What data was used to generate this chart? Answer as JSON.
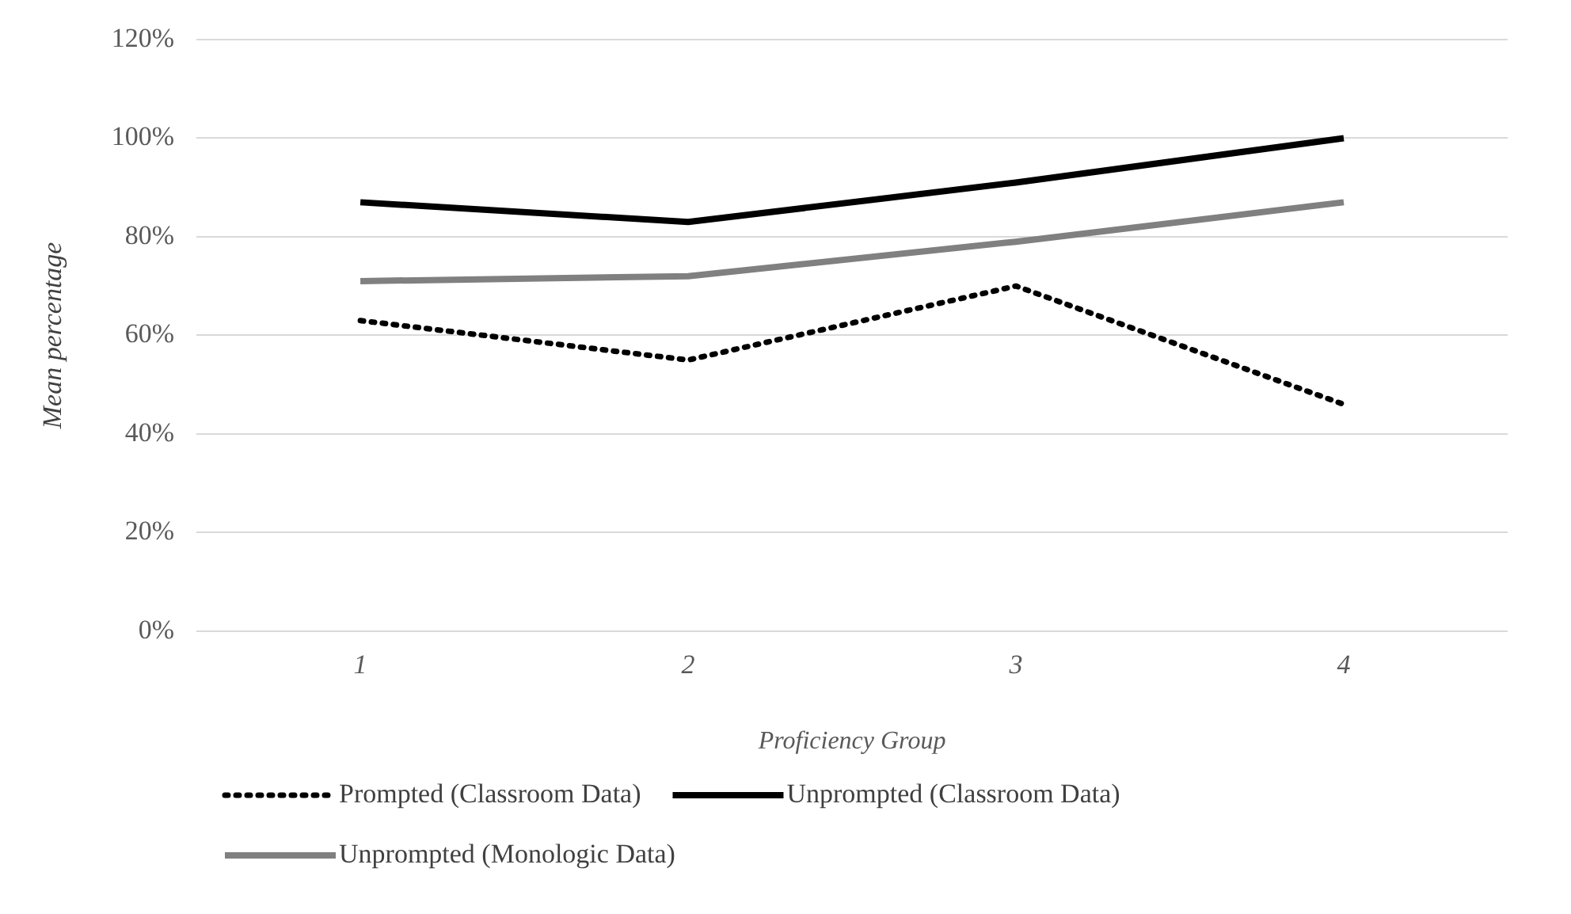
{
  "chart_data": {
    "type": "line",
    "xlabel": "Proficiency Group",
    "ylabel": "Mean percentage",
    "categories": [
      "1",
      "2",
      "3",
      "4"
    ],
    "series": [
      {
        "name": "Prompted (Classroom Data)",
        "color": "#000000",
        "line_style": "dotted",
        "values": [
          63,
          55,
          70,
          46
        ]
      },
      {
        "name": "Unprompted (Classroom Data)",
        "color": "#000000",
        "line_style": "solid",
        "values": [
          87,
          83,
          91,
          100
        ]
      },
      {
        "name": "Unprompted (Monologic Data)",
        "color": "#808080",
        "line_style": "solid",
        "values": [
          71,
          72,
          79,
          87
        ]
      }
    ],
    "ylim": [
      0,
      120
    ],
    "yticks": [
      {
        "value": 0,
        "label": "0%"
      },
      {
        "value": 20,
        "label": "20%"
      },
      {
        "value": 40,
        "label": "40%"
      },
      {
        "value": 60,
        "label": "60%"
      },
      {
        "value": 80,
        "label": "80%"
      },
      {
        "value": 100,
        "label": "100%"
      },
      {
        "value": 120,
        "label": "120%"
      }
    ],
    "grid": "y",
    "legend": "bottom",
    "marker": "none"
  }
}
